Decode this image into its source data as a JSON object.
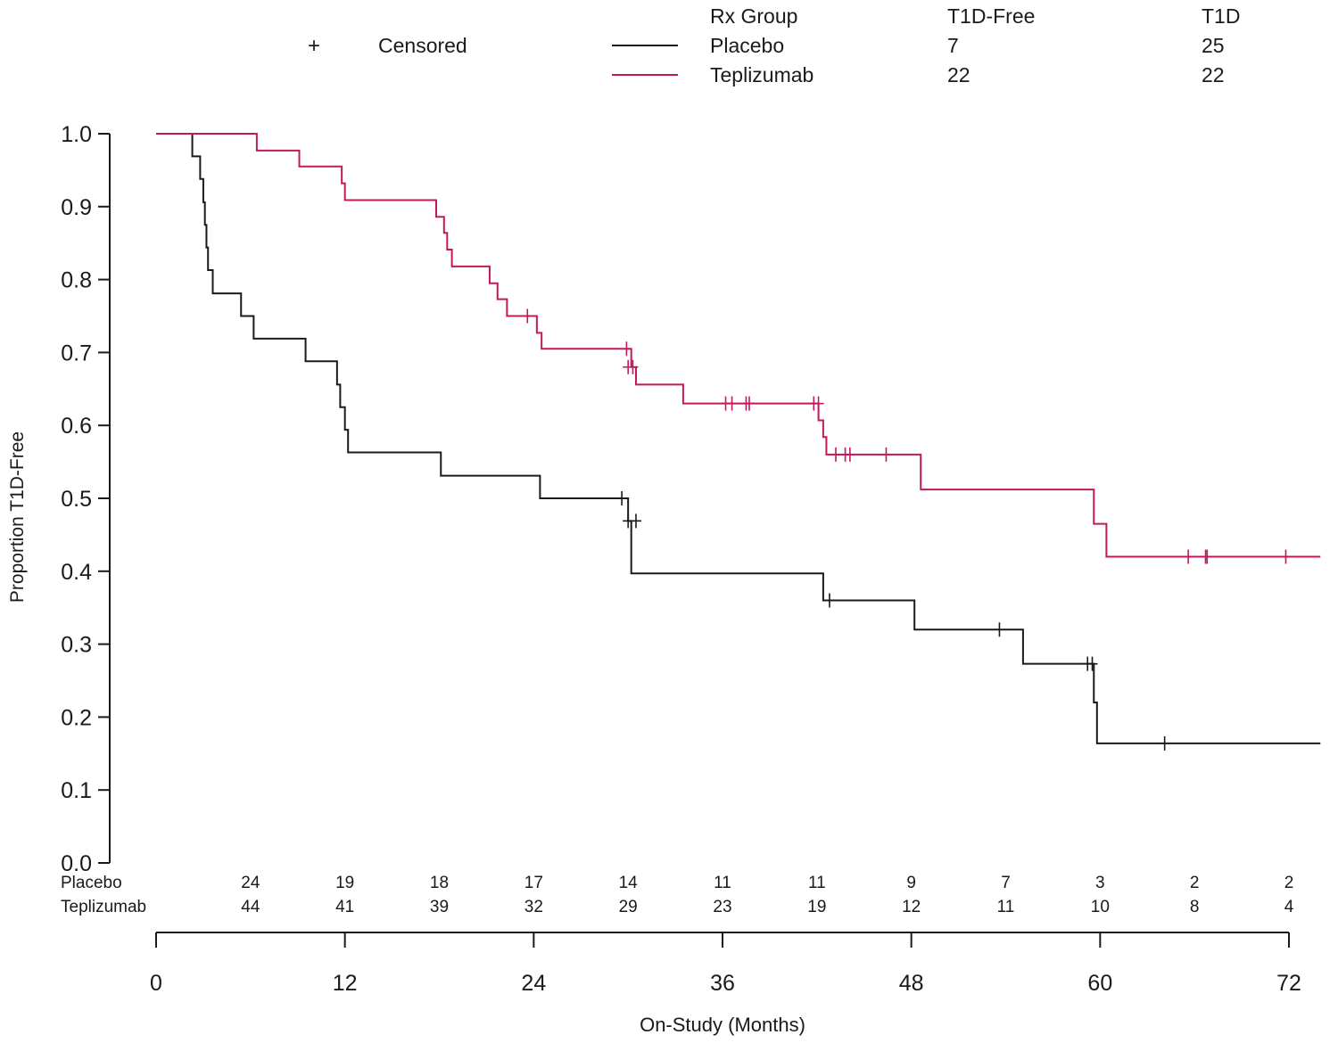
{
  "chart_data": {
    "type": "line",
    "subtype": "kaplan-meier-step",
    "xlabel": "On-Study (Months)",
    "ylabel": "Proportion T1D-Free",
    "xlim": [
      0,
      74
    ],
    "ylim": [
      0,
      1.0
    ],
    "x_ticks": [
      "0",
      "12",
      "24",
      "36",
      "48",
      "60",
      "72"
    ],
    "x_tick_values": [
      0,
      12,
      24,
      36,
      48,
      60,
      72
    ],
    "y_ticks": [
      "0.0",
      "0.1",
      "0.2",
      "0.3",
      "0.4",
      "0.5",
      "0.6",
      "0.7",
      "0.8",
      "0.9",
      "1.0"
    ],
    "y_tick_values": [
      0,
      0.1,
      0.2,
      0.3,
      0.4,
      0.5,
      0.6,
      0.7,
      0.8,
      0.9,
      1.0
    ],
    "legend": {
      "censored_symbol": "+",
      "censored_label": "Censored",
      "header_group": "Rx Group",
      "header_free": "T1D-Free",
      "header_t1d": "T1D",
      "rows": [
        {
          "name": "Placebo",
          "free": "7",
          "t1d": "25",
          "color": "#1a1a1a"
        },
        {
          "name": "Teplizumab",
          "free": "22",
          "t1d": "22",
          "color": "#c4185c"
        }
      ]
    },
    "risk_table": {
      "x": [
        6,
        12,
        18,
        24,
        30,
        36,
        42,
        48,
        54,
        60,
        66,
        72
      ],
      "rows": [
        {
          "label": "Placebo",
          "values": [
            "24",
            "19",
            "18",
            "17",
            "14",
            "11",
            "11",
            "9",
            "7",
            "3",
            "2",
            "2"
          ]
        },
        {
          "label": "Teplizumab",
          "values": [
            "44",
            "41",
            "39",
            "32",
            "29",
            "23",
            "19",
            "12",
            "11",
            "10",
            "8",
            "4"
          ]
        }
      ]
    },
    "series": [
      {
        "name": "Placebo",
        "color": "#1a1a1a",
        "steps": [
          [
            0,
            1.0
          ],
          [
            2.3,
            0.969
          ],
          [
            2.8,
            0.938
          ],
          [
            3.0,
            0.906
          ],
          [
            3.1,
            0.875
          ],
          [
            3.2,
            0.844
          ],
          [
            3.3,
            0.813
          ],
          [
            3.4,
            0.813
          ],
          [
            3.5,
            0.813
          ],
          [
            3.6,
            0.781
          ],
          [
            5.4,
            0.75
          ],
          [
            6.2,
            0.719
          ],
          [
            9.5,
            0.688
          ],
          [
            11.5,
            0.656
          ],
          [
            11.7,
            0.625
          ],
          [
            12.0,
            0.594
          ],
          [
            12.2,
            0.563
          ],
          [
            18.1,
            0.531
          ],
          [
            24.4,
            0.5
          ],
          [
            30.0,
            0.469
          ],
          [
            30.2,
            0.397
          ],
          [
            42.4,
            0.36
          ],
          [
            48.2,
            0.32
          ],
          [
            55.1,
            0.273
          ],
          [
            59.6,
            0.22
          ],
          [
            59.8,
            0.164
          ]
        ],
        "end_x": 74,
        "censored": [
          [
            29.6,
            0.5
          ],
          [
            30.0,
            0.469
          ],
          [
            30.5,
            0.469
          ],
          [
            42.8,
            0.36
          ],
          [
            53.6,
            0.32
          ],
          [
            59.2,
            0.273
          ],
          [
            59.5,
            0.273
          ],
          [
            64.1,
            0.164
          ]
        ]
      },
      {
        "name": "Teplizumab",
        "color": "#c4185c",
        "steps": [
          [
            0,
            1.0
          ],
          [
            6.4,
            0.977
          ],
          [
            9.1,
            0.955
          ],
          [
            11.8,
            0.932
          ],
          [
            12.0,
            0.909
          ],
          [
            17.8,
            0.886
          ],
          [
            18.3,
            0.864
          ],
          [
            18.5,
            0.841
          ],
          [
            18.8,
            0.818
          ],
          [
            21.2,
            0.795
          ],
          [
            21.7,
            0.773
          ],
          [
            22.3,
            0.75
          ],
          [
            24.2,
            0.727
          ],
          [
            24.5,
            0.705
          ],
          [
            30.2,
            0.68
          ],
          [
            30.5,
            0.656
          ],
          [
            33.5,
            0.63
          ],
          [
            42.1,
            0.607
          ],
          [
            42.4,
            0.584
          ],
          [
            42.6,
            0.56
          ],
          [
            48.6,
            0.512
          ],
          [
            59.6,
            0.465
          ],
          [
            60.4,
            0.42
          ]
        ],
        "end_x": 74,
        "censored": [
          [
            23.6,
            0.75
          ],
          [
            29.9,
            0.705
          ],
          [
            30.0,
            0.68
          ],
          [
            30.3,
            0.68
          ],
          [
            36.2,
            0.63
          ],
          [
            36.6,
            0.63
          ],
          [
            37.5,
            0.63
          ],
          [
            37.7,
            0.63
          ],
          [
            41.8,
            0.63
          ],
          [
            42.1,
            0.63
          ],
          [
            43.2,
            0.56
          ],
          [
            43.8,
            0.56
          ],
          [
            44.1,
            0.56
          ],
          [
            46.4,
            0.56
          ],
          [
            65.6,
            0.42
          ],
          [
            66.7,
            0.42
          ],
          [
            66.8,
            0.42
          ],
          [
            71.8,
            0.42
          ]
        ]
      }
    ]
  }
}
